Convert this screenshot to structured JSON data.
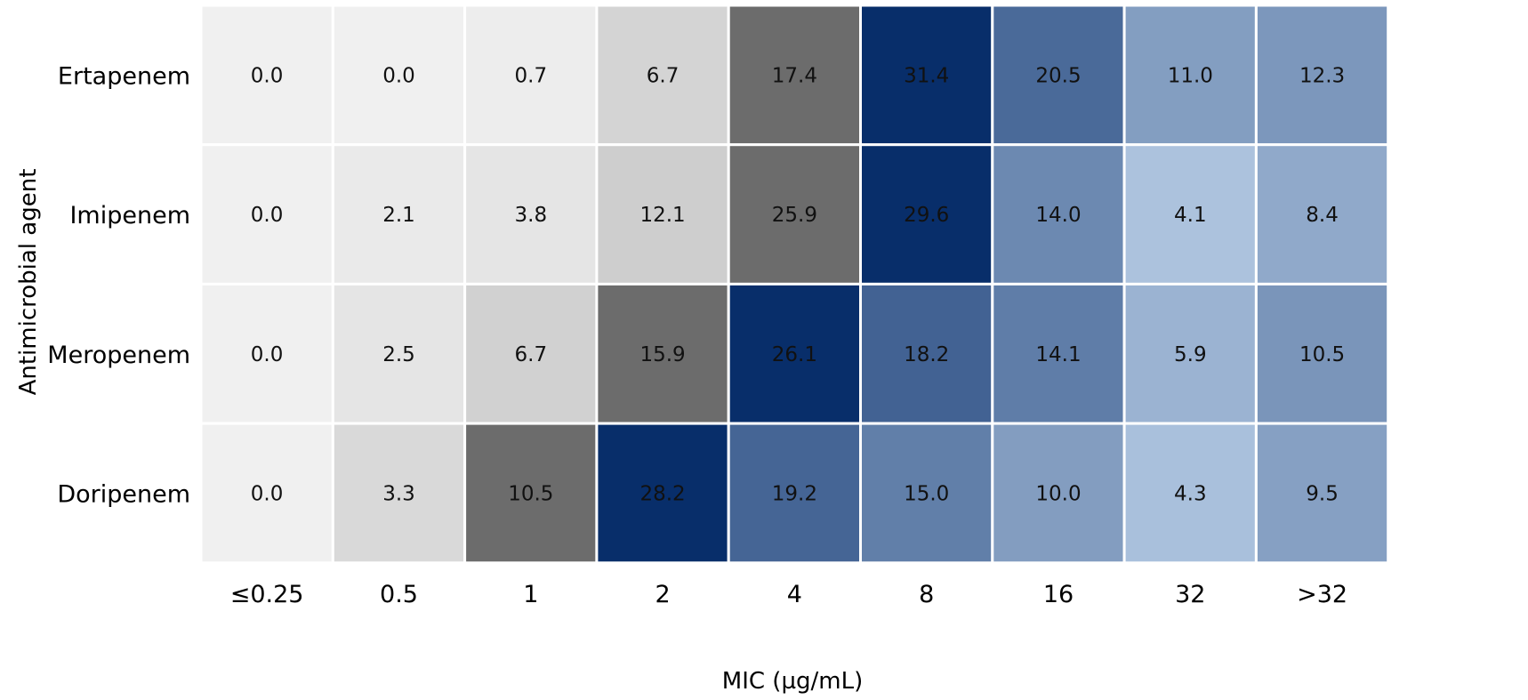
{
  "chart_data": {
    "type": "heatmap",
    "title": "",
    "xlabel": "MIC (µg/mL)",
    "ylabel": "Antimicrobial agent",
    "x_categories": [
      "≤0.25",
      "0.5",
      "1",
      "2",
      "4",
      "8",
      "16",
      "32",
      ">32"
    ],
    "y_categories": [
      "Ertapenem",
      "Imipenem",
      "Meropenem",
      "Doripenem"
    ],
    "values": [
      [
        0.0,
        0.0,
        0.7,
        6.7,
        17.4,
        31.4,
        20.5,
        11.0,
        12.3
      ],
      [
        0.0,
        2.1,
        3.8,
        12.1,
        25.9,
        29.6,
        14.0,
        4.1,
        8.4
      ],
      [
        0.0,
        2.5,
        6.7,
        15.9,
        26.1,
        18.2,
        14.1,
        5.9,
        10.5
      ],
      [
        0.0,
        3.3,
        10.5,
        28.2,
        19.2,
        15.0,
        10.0,
        4.3,
        9.5
      ]
    ],
    "value_format": "0.0",
    "grid": false,
    "colors": {
      "gray_light": "#f0f0f0",
      "gray_dark": "#6c6c6c",
      "blue_light": "#c6daf0",
      "blue_dark": "#082e6a",
      "cell_border": "#ffffff"
    }
  }
}
